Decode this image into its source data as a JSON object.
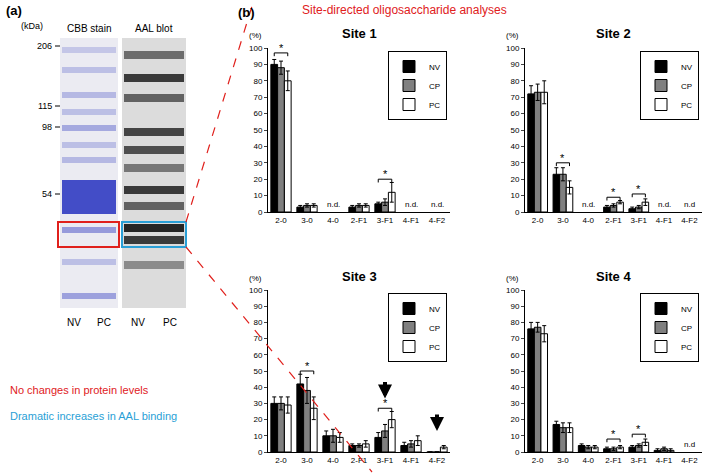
{
  "panel_a": {
    "label": "(a)",
    "unit": "(kDa)",
    "markers": [
      206,
      115,
      98,
      54
    ],
    "headers": [
      "CBB stain",
      "AAL blot"
    ],
    "lanes": [
      "NV",
      "PC",
      "NV",
      "PC"
    ],
    "notes": [
      {
        "text": "No changes in protein levels",
        "color": "#e0201c"
      },
      {
        "text": "Dramatic increases in AAL binding",
        "color": "#2a9fd6"
      }
    ]
  },
  "panel_b": {
    "label": "(b)",
    "title": "Site-directed oligosaccharide analyses",
    "title_color": "#e0201c"
  },
  "chart_data": [
    {
      "type": "bar",
      "title": "Site 1",
      "ylabel": "(%)",
      "categories": [
        "2-0",
        "3-0",
        "4-0",
        "2-F1",
        "3-F1",
        "4-F1",
        "4-F2"
      ],
      "series": [
        {
          "name": "NV",
          "color": "#000000",
          "values": [
            90,
            3,
            null,
            3,
            5,
            null,
            null
          ],
          "errors": [
            3,
            1,
            null,
            1,
            1,
            null,
            null
          ]
        },
        {
          "name": "CP",
          "color": "#808080",
          "values": [
            88,
            4,
            null,
            4,
            6,
            null,
            null
          ],
          "errors": [
            4,
            1,
            null,
            1,
            2,
            null,
            null
          ]
        },
        {
          "name": "PC",
          "color": "#ffffff",
          "values": [
            80,
            4,
            null,
            4,
            12,
            null,
            null
          ],
          "errors": [
            6,
            1,
            null,
            1,
            6,
            null,
            null
          ]
        }
      ],
      "annotations": [
        {
          "category": "4-0",
          "text": "n.d."
        },
        {
          "category": "4-F1",
          "text": "n.d."
        },
        {
          "category": "4-F2",
          "text": "n.d."
        }
      ],
      "significance": [
        {
          "category": "2-0",
          "text": "*",
          "y": 97
        },
        {
          "category": "3-F1",
          "text": "*",
          "y": 20
        }
      ],
      "arrows": [],
      "ylim": [
        0,
        100
      ],
      "yticks": [
        0,
        10,
        20,
        30,
        40,
        50,
        60,
        70,
        80,
        90,
        100
      ],
      "grid": false,
      "legend": "top right"
    },
    {
      "type": "bar",
      "title": "Site 2",
      "ylabel": "(%)",
      "categories": [
        "2-0",
        "3-0",
        "4-0",
        "2-F1",
        "3-F1",
        "4-F1",
        "4-F2"
      ],
      "series": [
        {
          "name": "NV",
          "color": "#000000",
          "values": [
            72,
            23,
            null,
            3,
            2,
            null,
            null
          ],
          "errors": [
            5,
            4,
            null,
            1,
            1,
            null,
            null
          ]
        },
        {
          "name": "CP",
          "color": "#808080",
          "values": [
            73,
            23,
            null,
            4,
            3,
            null,
            null
          ],
          "errors": [
            5,
            4,
            null,
            1,
            1,
            null,
            null
          ]
        },
        {
          "name": "PC",
          "color": "#ffffff",
          "values": [
            73,
            15,
            null,
            6,
            6,
            null,
            null
          ],
          "errors": [
            7,
            4,
            null,
            1,
            2,
            null,
            null
          ]
        }
      ],
      "annotations": [
        {
          "category": "4-0",
          "text": "n.d."
        },
        {
          "category": "4-F1",
          "text": "n.d."
        },
        {
          "category": "4-F2",
          "text": "n.d"
        }
      ],
      "significance": [
        {
          "category": "3-0",
          "text": "*",
          "y": 30
        },
        {
          "category": "2-F1",
          "text": "*",
          "y": 9
        },
        {
          "category": "3-F1",
          "text": "*",
          "y": 11
        }
      ],
      "arrows": [],
      "ylim": [
        0,
        100
      ],
      "yticks": [
        0,
        10,
        20,
        30,
        40,
        50,
        60,
        70,
        80,
        90,
        100
      ],
      "grid": false,
      "legend": "top right"
    },
    {
      "type": "bar",
      "title": "Site 3",
      "ylabel": "(%)",
      "categories": [
        "2-0",
        "3-0",
        "4-0",
        "2-F1",
        "3-F1",
        "4-F1",
        "4-F2"
      ],
      "series": [
        {
          "name": "NV",
          "color": "#000000",
          "values": [
            30,
            42,
            10,
            4,
            9,
            4,
            0
          ],
          "errors": [
            4,
            6,
            3,
            1,
            3,
            2,
            null
          ]
        },
        {
          "name": "CP",
          "color": "#808080",
          "values": [
            30,
            38,
            10,
            4,
            13,
            5,
            0
          ],
          "errors": [
            4,
            8,
            4,
            1,
            4,
            2,
            null
          ]
        },
        {
          "name": "PC",
          "color": "#ffffff",
          "values": [
            29,
            27,
            9,
            5,
            20,
            7,
            3
          ],
          "errors": [
            5,
            7,
            3,
            2,
            5,
            3,
            1
          ]
        }
      ],
      "annotations": [],
      "significance": [
        {
          "category": "3-0",
          "text": "*",
          "y": 50
        },
        {
          "category": "3-F1",
          "text": "*",
          "y": 27
        }
      ],
      "arrows": [
        {
          "category": "3-F1",
          "y": 33
        },
        {
          "category": "4-F2",
          "y": 13
        }
      ],
      "ylim": [
        0,
        100
      ],
      "yticks": [
        0,
        10,
        20,
        30,
        40,
        50,
        60,
        70,
        80,
        90,
        100
      ],
      "grid": false,
      "legend": "top right"
    },
    {
      "type": "bar",
      "title": "Site 4",
      "ylabel": "(%)",
      "categories": [
        "2-0",
        "3-0",
        "4-0",
        "2-F1",
        "3-F1",
        "4-F1",
        "4-F2"
      ],
      "series": [
        {
          "name": "NV",
          "color": "#000000",
          "values": [
            76,
            17,
            4,
            2,
            3,
            1,
            null
          ],
          "errors": [
            4,
            2,
            1,
            1,
            1,
            1,
            null
          ]
        },
        {
          "name": "CP",
          "color": "#808080",
          "values": [
            77,
            15,
            3,
            2,
            4,
            2,
            null
          ],
          "errors": [
            3,
            3,
            1,
            1,
            1,
            1,
            null
          ]
        },
        {
          "name": "PC",
          "color": "#ffffff",
          "values": [
            73,
            15,
            3,
            3,
            6,
            1,
            null
          ],
          "errors": [
            5,
            3,
            1,
            1,
            2,
            1,
            null
          ]
        }
      ],
      "annotations": [
        {
          "category": "4-F2",
          "text": "n.d"
        }
      ],
      "significance": [
        {
          "category": "2-F1",
          "text": "*",
          "y": 8
        },
        {
          "category": "3-F1",
          "text": "*",
          "y": 11
        }
      ],
      "arrows": [],
      "ylim": [
        0,
        100
      ],
      "yticks": [
        0,
        10,
        20,
        30,
        40,
        50,
        60,
        70,
        80,
        90,
        100
      ],
      "grid": false,
      "legend": "top right"
    }
  ]
}
